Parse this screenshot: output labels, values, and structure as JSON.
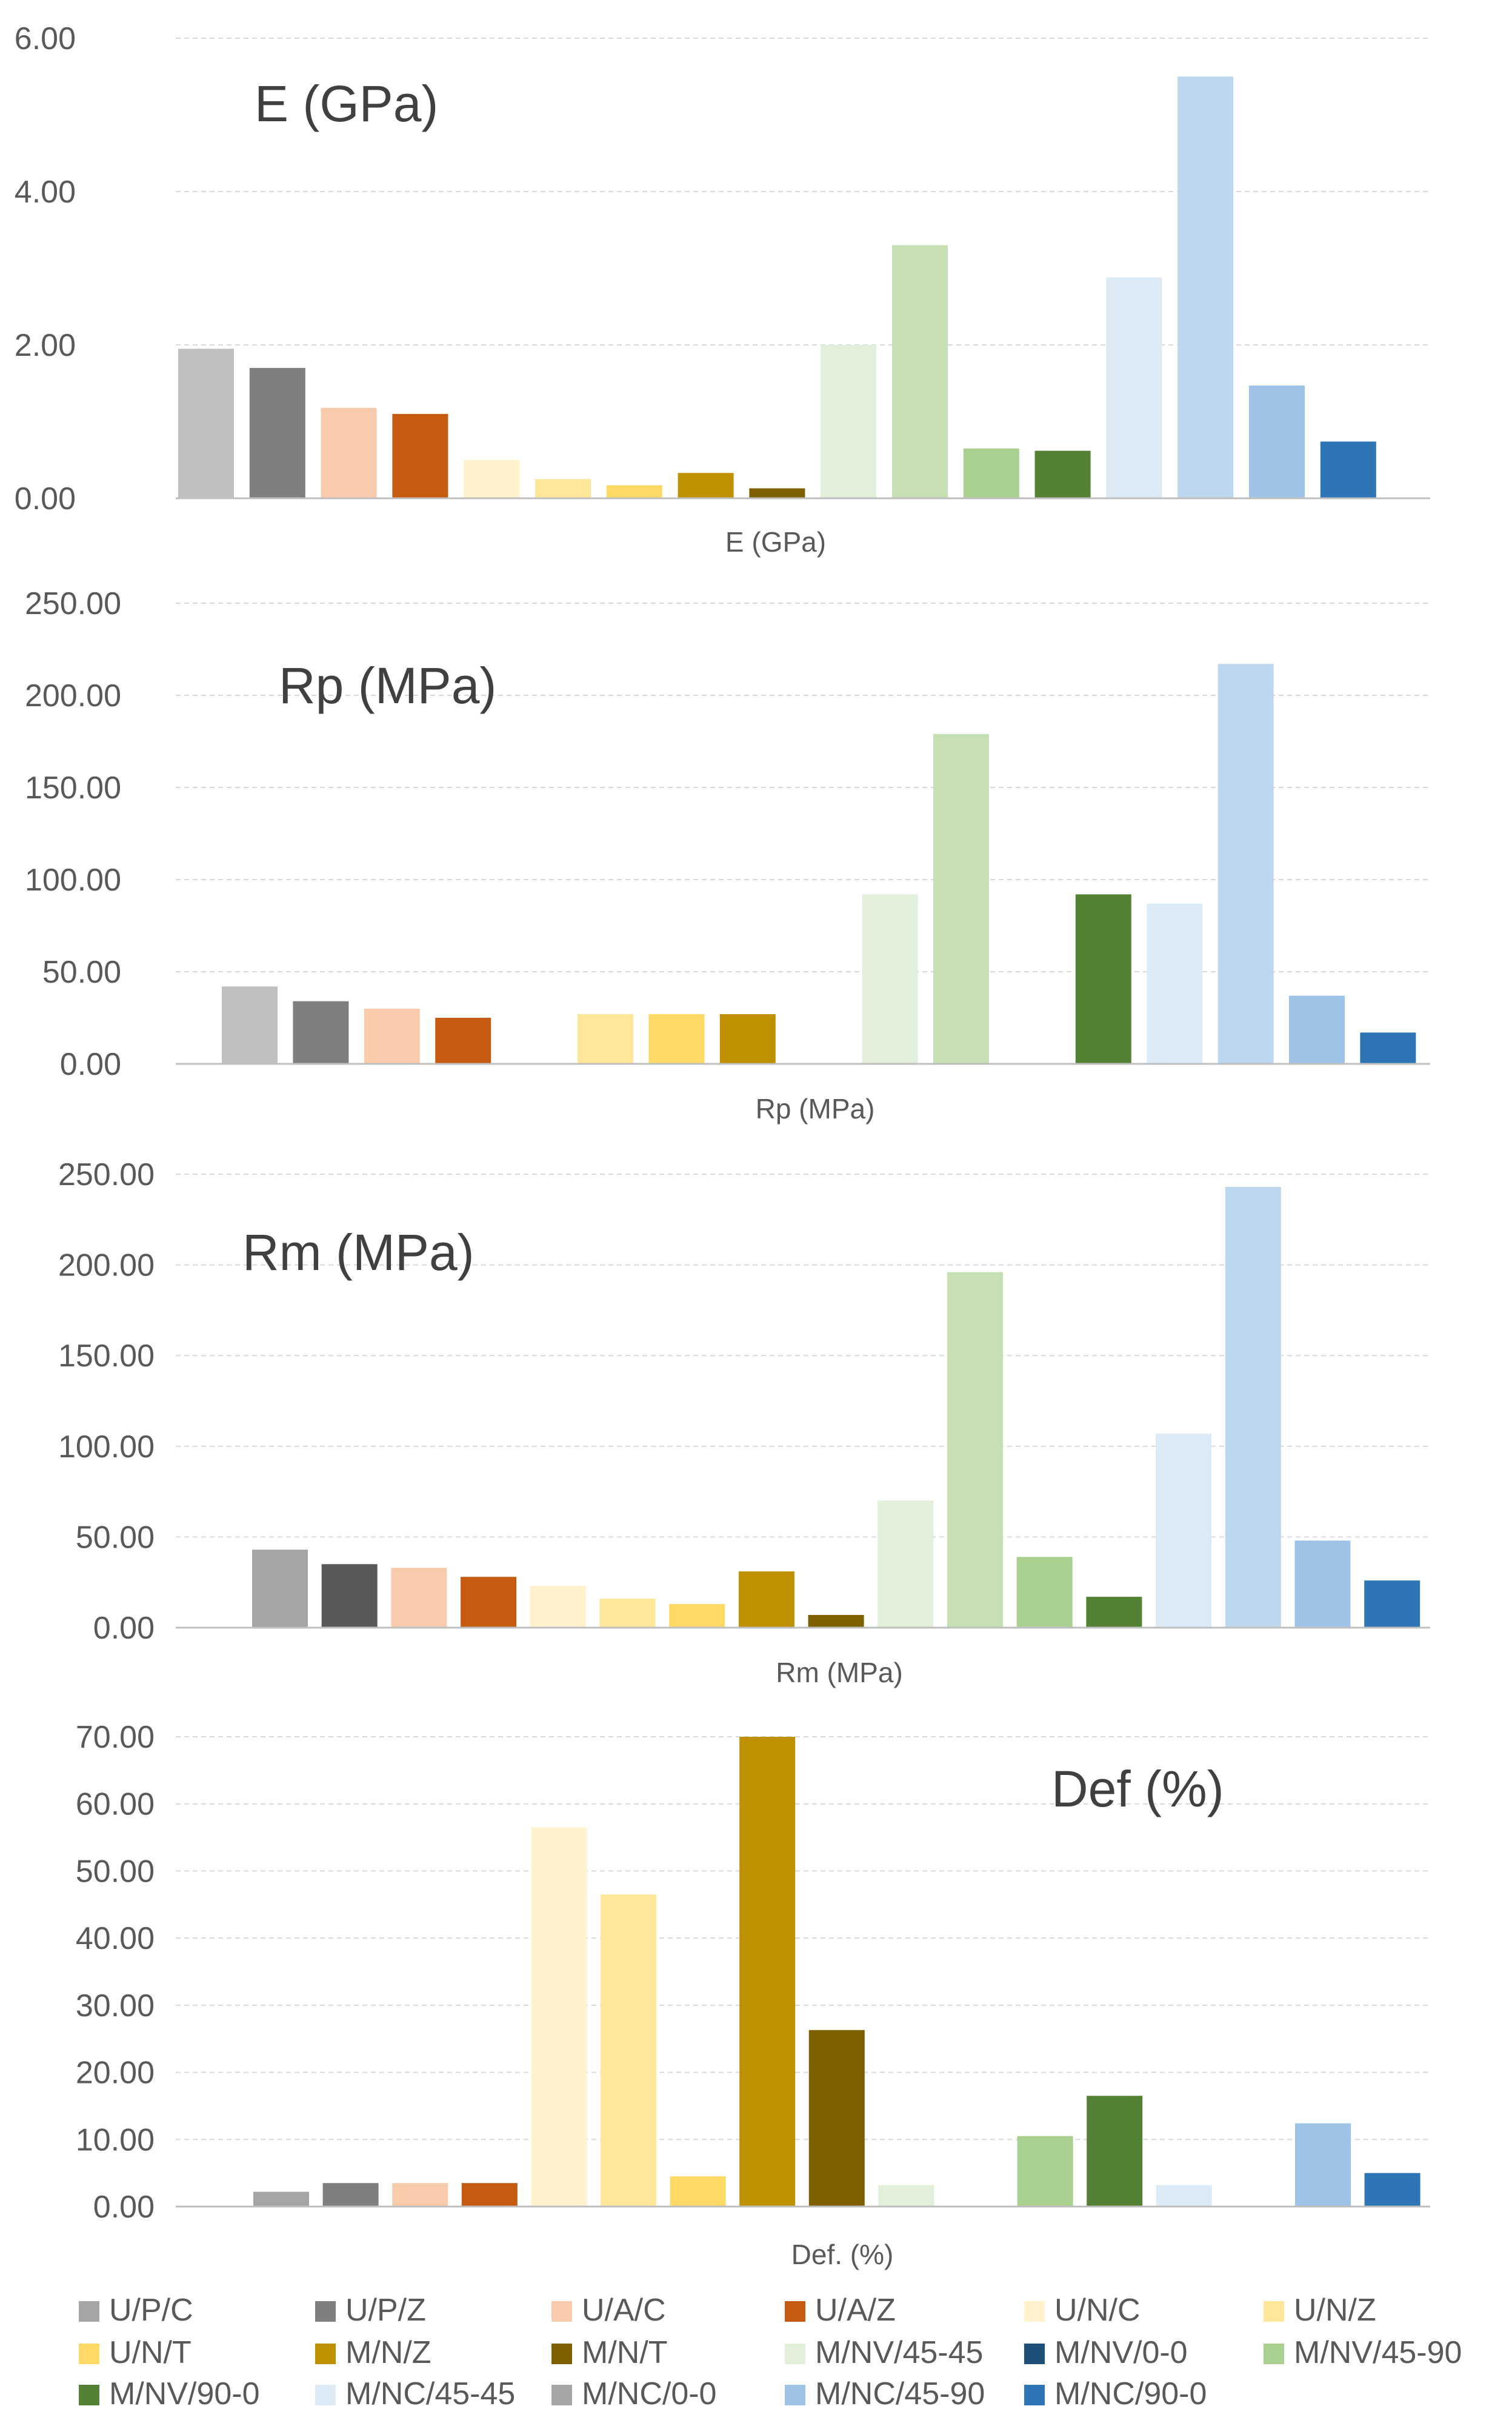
{
  "legend": [
    {
      "name": "U/P/C",
      "color": "#a5a5a5"
    },
    {
      "name": "U/P/Z",
      "color": "#7f7f7f"
    },
    {
      "name": "U/A/C",
      "color": "#f8cbad"
    },
    {
      "name": "U/A/Z",
      "color": "#c55a11"
    },
    {
      "name": "U/N/C",
      "color": "#fff2cc"
    },
    {
      "name": "U/N/Z",
      "color": "#ffe699"
    },
    {
      "name": "U/N/T",
      "color": "#ffd966"
    },
    {
      "name": "M/N/Z",
      "color": "#bf9000"
    },
    {
      "name": "M/N/T",
      "color": "#7f6000"
    },
    {
      "name": "M/NV/45-45",
      "color": "#e2efda"
    },
    {
      "name": "M/NV/0-0",
      "color": "#1f4e79"
    },
    {
      "name": "M/NV/45-90",
      "color": "#a9d08e"
    },
    {
      "name": "M/NV/90-0",
      "color": "#548235"
    },
    {
      "name": "M/NC/45-45",
      "color": "#ddebf7"
    },
    {
      "name": "M/NC/0-0",
      "color": "#a6a6a6"
    },
    {
      "name": "M/NC/45-90",
      "color": "#9dc3e6"
    },
    {
      "name": "M/NC/90-0",
      "color": "#2e75b6"
    }
  ],
  "chart_data": [
    {
      "type": "bar",
      "title": "E (GPa)",
      "xlabel": "E (GPa)",
      "ylabel": "",
      "ylim": [
        0,
        6
      ],
      "yticks": [
        "0.00",
        "2.00",
        "4.00",
        "6.00"
      ],
      "bars": [
        {
          "series": "U/P/C",
          "value": 1.95,
          "color": "#bfbfbf"
        },
        {
          "series": "U/P/Z",
          "value": 1.7,
          "color": "#7f7f7f"
        },
        {
          "series": "U/A/C",
          "value": 1.18,
          "color": "#f8cbad"
        },
        {
          "series": "U/A/Z",
          "value": 1.1,
          "color": "#c55a11"
        },
        {
          "series": "U/N/C",
          "value": 0.5,
          "color": "#fff2cc"
        },
        {
          "series": "U/N/Z",
          "value": 0.25,
          "color": "#ffe699"
        },
        {
          "series": "U/N/T",
          "value": 0.17,
          "color": "#ffd966"
        },
        {
          "series": "M/N/Z",
          "value": 0.33,
          "color": "#bf9000"
        },
        {
          "series": "M/N/T",
          "value": 0.13,
          "color": "#7f6000"
        },
        {
          "series": "M/NV/45-45",
          "value": 2.0,
          "color": "#e2efda"
        },
        {
          "series": "M/NV/0-0",
          "value": 3.3,
          "color": "#c6e0b4"
        },
        {
          "series": "M/NV/45-90",
          "value": 0.65,
          "color": "#a9d08e"
        },
        {
          "series": "M/NV/90-0",
          "value": 0.62,
          "color": "#548235"
        },
        {
          "series": "M/NC/45-45",
          "value": 2.88,
          "color": "#ddebf7"
        },
        {
          "series": "M/NC/0-0",
          "value": 5.5,
          "color": "#bdd7ee"
        },
        {
          "series": "M/NC/45-90",
          "value": 1.47,
          "color": "#9dc3e6"
        },
        {
          "series": "M/NC/90-0",
          "value": 0.74,
          "color": "#2e75b6"
        }
      ]
    },
    {
      "type": "bar",
      "title": "Rp (MPa)",
      "xlabel": "Rp (MPa)",
      "ylabel": "",
      "ylim": [
        0,
        250
      ],
      "yticks": [
        "0.00",
        "50.00",
        "100.00",
        "150.00",
        "200.00",
        "250.00"
      ],
      "bars": [
        {
          "series": "U/P/C",
          "value": 42,
          "color": "#bfbfbf"
        },
        {
          "series": "U/P/Z",
          "value": 34,
          "color": "#7f7f7f"
        },
        {
          "series": "U/A/C",
          "value": 30,
          "color": "#f8cbad"
        },
        {
          "series": "U/A/Z",
          "value": 25,
          "color": "#c55a11"
        },
        {
          "series": "U/N/C",
          "value": 0,
          "color": "#fff2cc"
        },
        {
          "series": "U/N/Z",
          "value": 27,
          "color": "#ffe699"
        },
        {
          "series": "U/N/T",
          "value": 27,
          "color": "#ffd966"
        },
        {
          "series": "M/N/Z",
          "value": 27,
          "color": "#bf9000"
        },
        {
          "series": "M/N/T",
          "value": 0,
          "color": "#7f6000"
        },
        {
          "series": "M/NV/45-45",
          "value": 92,
          "color": "#e2efda"
        },
        {
          "series": "M/NV/0-0",
          "value": 179,
          "color": "#c6e0b4"
        },
        {
          "series": "M/NV/45-90",
          "value": 0,
          "color": "#a9d08e"
        },
        {
          "series": "M/NV/90-0",
          "value": 92,
          "color": "#548235"
        },
        {
          "series": "M/NC/45-45",
          "value": 87,
          "color": "#ddebf7"
        },
        {
          "series": "M/NC/0-0",
          "value": 217,
          "color": "#bdd7ee"
        },
        {
          "series": "M/NC/45-90",
          "value": 37,
          "color": "#9dc3e6"
        },
        {
          "series": "M/NC/90-0",
          "value": 17,
          "color": "#2e75b6"
        }
      ]
    },
    {
      "type": "bar",
      "title": "Rm (MPa)",
      "xlabel": "Rm (MPa)",
      "ylabel": "",
      "ylim": [
        0,
        250
      ],
      "yticks": [
        "0.00",
        "50.00",
        "100.00",
        "150.00",
        "200.00",
        "250.00"
      ],
      "bars": [
        {
          "series": "U/P/C",
          "value": 43,
          "color": "#a5a5a5"
        },
        {
          "series": "U/P/Z",
          "value": 35,
          "color": "#595959"
        },
        {
          "series": "U/A/C",
          "value": 33,
          "color": "#f8cbad"
        },
        {
          "series": "U/A/Z",
          "value": 28,
          "color": "#c55a11"
        },
        {
          "series": "U/N/C",
          "value": 23,
          "color": "#fff2cc"
        },
        {
          "series": "U/N/Z",
          "value": 16,
          "color": "#ffe699"
        },
        {
          "series": "U/N/T",
          "value": 13,
          "color": "#ffd966"
        },
        {
          "series": "M/N/Z",
          "value": 31,
          "color": "#bf9000"
        },
        {
          "series": "M/N/T",
          "value": 7,
          "color": "#7f6000"
        },
        {
          "series": "M/NV/45-45",
          "value": 70,
          "color": "#e2efda"
        },
        {
          "series": "M/NV/0-0",
          "value": 196,
          "color": "#c6e0b4"
        },
        {
          "series": "M/NV/45-90",
          "value": 39,
          "color": "#a9d08e"
        },
        {
          "series": "M/NV/90-0",
          "value": 17,
          "color": "#548235"
        },
        {
          "series": "M/NC/45-45",
          "value": 107,
          "color": "#ddebf7"
        },
        {
          "series": "M/NC/0-0",
          "value": 243,
          "color": "#bdd7ee"
        },
        {
          "series": "M/NC/45-90",
          "value": 48,
          "color": "#9dc3e6"
        },
        {
          "series": "M/NC/90-0",
          "value": 26,
          "color": "#2e75b6"
        }
      ]
    },
    {
      "type": "bar",
      "title": "Def (%)",
      "xlabel": "Def. (%)",
      "ylabel": "",
      "ylim": [
        0,
        70
      ],
      "yticks": [
        "0.00",
        "10.00",
        "20.00",
        "30.00",
        "40.00",
        "50.00",
        "60.00",
        "70.00"
      ],
      "bars": [
        {
          "series": "U/P/C",
          "value": 2.2,
          "color": "#a5a5a5"
        },
        {
          "series": "U/P/Z",
          "value": 3.5,
          "color": "#7f7f7f"
        },
        {
          "series": "U/A/C",
          "value": 3.5,
          "color": "#f8cbad"
        },
        {
          "series": "U/A/Z",
          "value": 3.5,
          "color": "#c55a11"
        },
        {
          "series": "U/N/C",
          "value": 56.5,
          "color": "#fff2cc"
        },
        {
          "series": "U/N/Z",
          "value": 46.5,
          "color": "#ffe699"
        },
        {
          "series": "U/N/T",
          "value": 4.5,
          "color": "#ffd966"
        },
        {
          "series": "M/N/Z",
          "value": 70,
          "color": "#bf9000"
        },
        {
          "series": "M/N/T",
          "value": 26.3,
          "color": "#7f6000"
        },
        {
          "series": "M/NV/45-45",
          "value": 3.2,
          "color": "#e2efda"
        },
        {
          "series": "M/NV/0-0",
          "value": 0,
          "color": "#c6e0b4"
        },
        {
          "series": "M/NV/45-90",
          "value": 10.5,
          "color": "#a9d08e"
        },
        {
          "series": "M/NV/90-0",
          "value": 16.5,
          "color": "#548235"
        },
        {
          "series": "M/NC/45-45",
          "value": 3.2,
          "color": "#ddebf7"
        },
        {
          "series": "M/NC/0-0",
          "value": 0,
          "color": "#bdd7ee"
        },
        {
          "series": "M/NC/45-90",
          "value": 12.4,
          "color": "#9dc3e6"
        },
        {
          "series": "M/NC/90-0",
          "value": 5.0,
          "color": "#2e75b6"
        }
      ]
    }
  ]
}
